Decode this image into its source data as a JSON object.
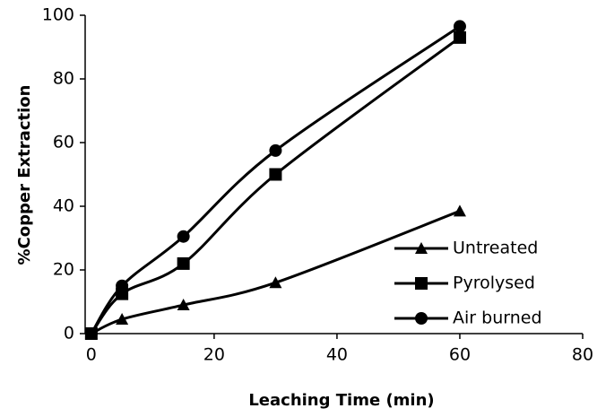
{
  "chart_data": {
    "type": "line",
    "smooth": true,
    "x_label": "Leaching Time (min)",
    "y_label": "%Copper Extraction",
    "x": [
      0,
      5,
      15,
      30,
      60
    ],
    "series": [
      {
        "name": "Untreated",
        "color": "#000000",
        "marker": "triangle",
        "values": [
          0,
          4.5,
          9,
          16,
          38.5
        ]
      },
      {
        "name": "Pyrolysed",
        "color": "#000000",
        "marker": "square",
        "values": [
          0,
          12.5,
          22,
          50,
          93
        ]
      },
      {
        "name": "Air burned",
        "color": "#000000",
        "marker": "circle",
        "values": [
          0,
          15,
          30.5,
          57.5,
          96.5
        ]
      }
    ],
    "xlim": [
      -1,
      80
    ],
    "xticks": [
      0,
      20,
      40,
      60,
      80
    ],
    "ylim": [
      0,
      100
    ],
    "yticks": [
      0,
      20,
      40,
      60,
      80,
      100
    ],
    "grid": false,
    "legend": "lower right"
  }
}
